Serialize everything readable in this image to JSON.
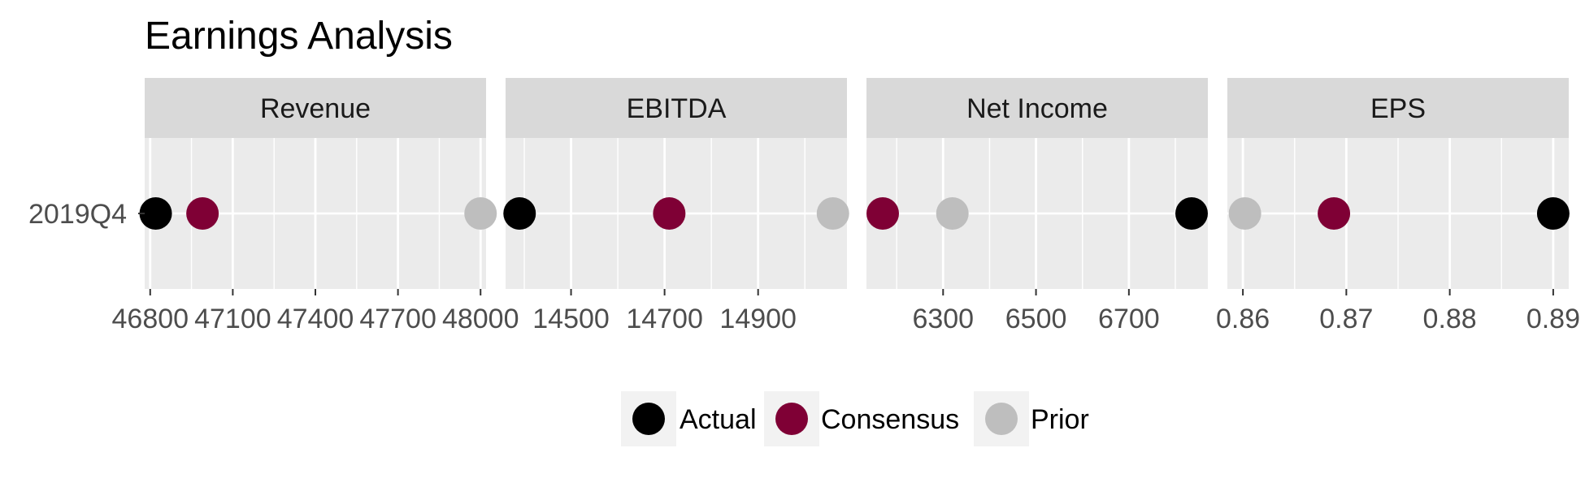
{
  "chart_data": {
    "type": "scatter",
    "title": "Earnings Analysis",
    "categories": [
      "2019Q4"
    ],
    "colors": {
      "Actual": "#000000",
      "Consensus": "#7f0035",
      "Prior": "#bebebe",
      "panel_bg": "#ebebeb",
      "strip_bg": "#d9d9d9"
    },
    "legend": {
      "position": "bottom",
      "items": [
        "Actual",
        "Consensus",
        "Prior"
      ]
    },
    "panels": [
      {
        "name": "Revenue",
        "xlim": [
          46780,
          48020
        ],
        "ticks": [
          46800,
          47100,
          47400,
          47700,
          48000
        ],
        "tick_labels": [
          "46800",
          "47100",
          "47400",
          "47700",
          "48000"
        ],
        "minor": [
          46950,
          47250,
          47550,
          47850
        ],
        "series": [
          {
            "name": "Actual",
            "x": 46820
          },
          {
            "name": "Consensus",
            "x": 46990
          },
          {
            "name": "Prior",
            "x": 48000
          }
        ]
      },
      {
        "name": "EBITDA",
        "xlim": [
          14360,
          15090
        ],
        "ticks": [
          14500,
          14700,
          14900
        ],
        "tick_labels": [
          "14500",
          "14700",
          "14900"
        ],
        "minor": [
          14400,
          14600,
          14800,
          15000
        ],
        "series": [
          {
            "name": "Actual",
            "x": 14390
          },
          {
            "name": "Consensus",
            "x": 14710
          },
          {
            "name": "Prior",
            "x": 15060
          }
        ]
      },
      {
        "name": "Net Income",
        "xlim": [
          6135,
          6870
        ],
        "ticks": [
          6300,
          6500,
          6700
        ],
        "tick_labels": [
          "6300",
          "6500",
          "6700"
        ],
        "minor": [
          6200,
          6400,
          6600,
          6800
        ],
        "series": [
          {
            "name": "Actual",
            "x": 6835
          },
          {
            "name": "Consensus",
            "x": 6170
          },
          {
            "name": "Prior",
            "x": 6320
          }
        ]
      },
      {
        "name": "EPS",
        "xlim": [
          0.8585,
          0.8915
        ],
        "ticks": [
          0.86,
          0.87,
          0.88,
          0.89
        ],
        "tick_labels": [
          "0.86",
          "0.87",
          "0.88",
          "0.89"
        ],
        "minor": [
          0.865,
          0.875,
          0.885
        ],
        "series": [
          {
            "name": "Actual",
            "x": 0.89
          },
          {
            "name": "Consensus",
            "x": 0.8688
          },
          {
            "name": "Prior",
            "x": 0.8602
          }
        ]
      }
    ]
  }
}
